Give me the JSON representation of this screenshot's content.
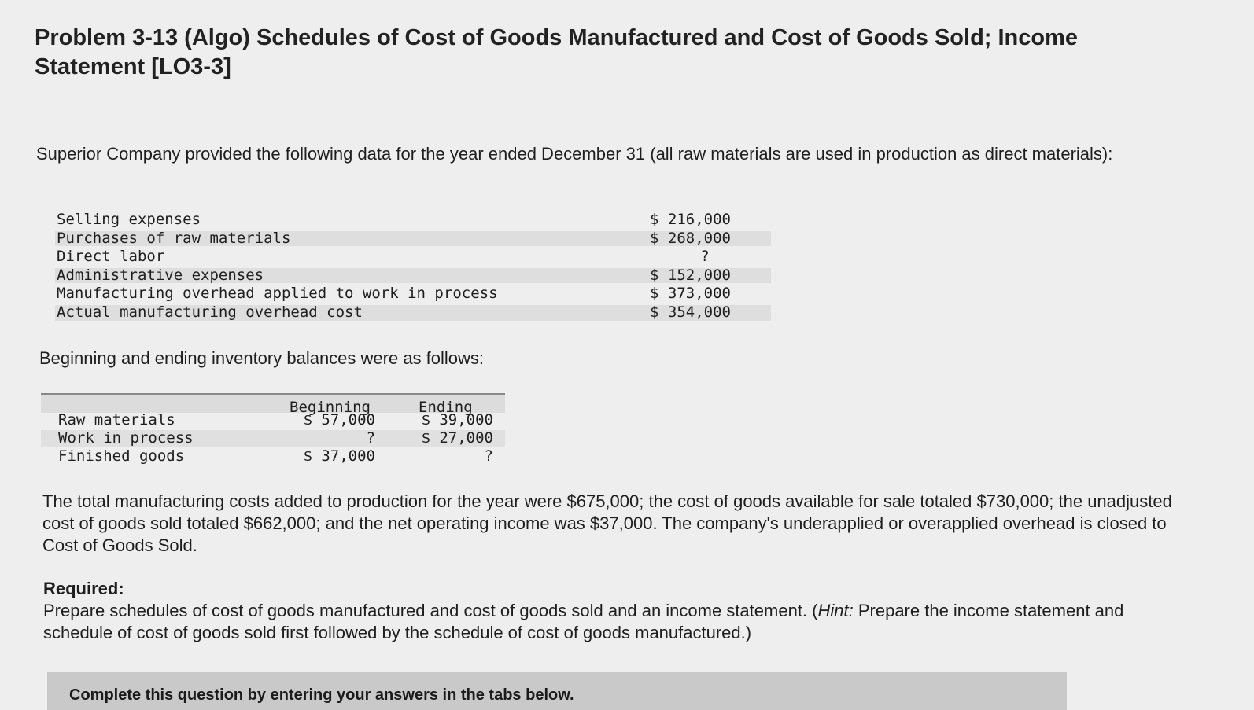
{
  "title": "Problem 3-13 (Algo) Schedules of Cost of Goods Manufactured and Cost of Goods Sold; Income Statement [LO3-3]",
  "intro": "Superior Company provided the following data for the year ended December 31 (all raw materials are used in production as direct materials):",
  "data_rows": [
    {
      "label": "Selling expenses",
      "value": "$ 216,000"
    },
    {
      "label": "Purchases of raw materials",
      "value": "$ 268,000"
    },
    {
      "label": "Direct labor",
      "value": "?"
    },
    {
      "label": "Administrative expenses",
      "value": "$ 152,000"
    },
    {
      "label": "Manufacturing overhead applied to work in process",
      "value": "$ 373,000"
    },
    {
      "label": "Actual manufacturing overhead cost",
      "value": "$ 354,000"
    }
  ],
  "inventory_intro": "Beginning and ending inventory balances were as follows:",
  "inventory": {
    "headers": {
      "beginning": "Beginning",
      "ending": "Ending"
    },
    "rows": [
      {
        "label": "Raw materials",
        "beginning": "$ 57,000",
        "ending": "$ 39,000"
      },
      {
        "label": "Work in process",
        "beginning": "?",
        "ending": "$ 27,000"
      },
      {
        "label": "Finished goods",
        "beginning": "$ 37,000",
        "ending": "?"
      }
    ]
  },
  "paragraph": "The total manufacturing costs added to production for the year were $675,000; the cost of goods available for sale totaled $730,000; the unadjusted cost of goods sold totaled $662,000; and the net operating income was $37,000. The company's underapplied or overapplied overhead is closed to Cost of Goods Sold.",
  "required": {
    "heading": "Required:",
    "text_before_hint": "Prepare schedules of cost of goods manufactured and cost of goods sold and an income statement. (",
    "hint_label": "Hint:",
    "text_after_hint": " Prepare the income statement and schedule of cost of goods sold first followed by the schedule of cost of goods manufactured.)"
  },
  "bottom_bar": {
    "text": "Complete this question by entering your answers in the tabs below."
  }
}
